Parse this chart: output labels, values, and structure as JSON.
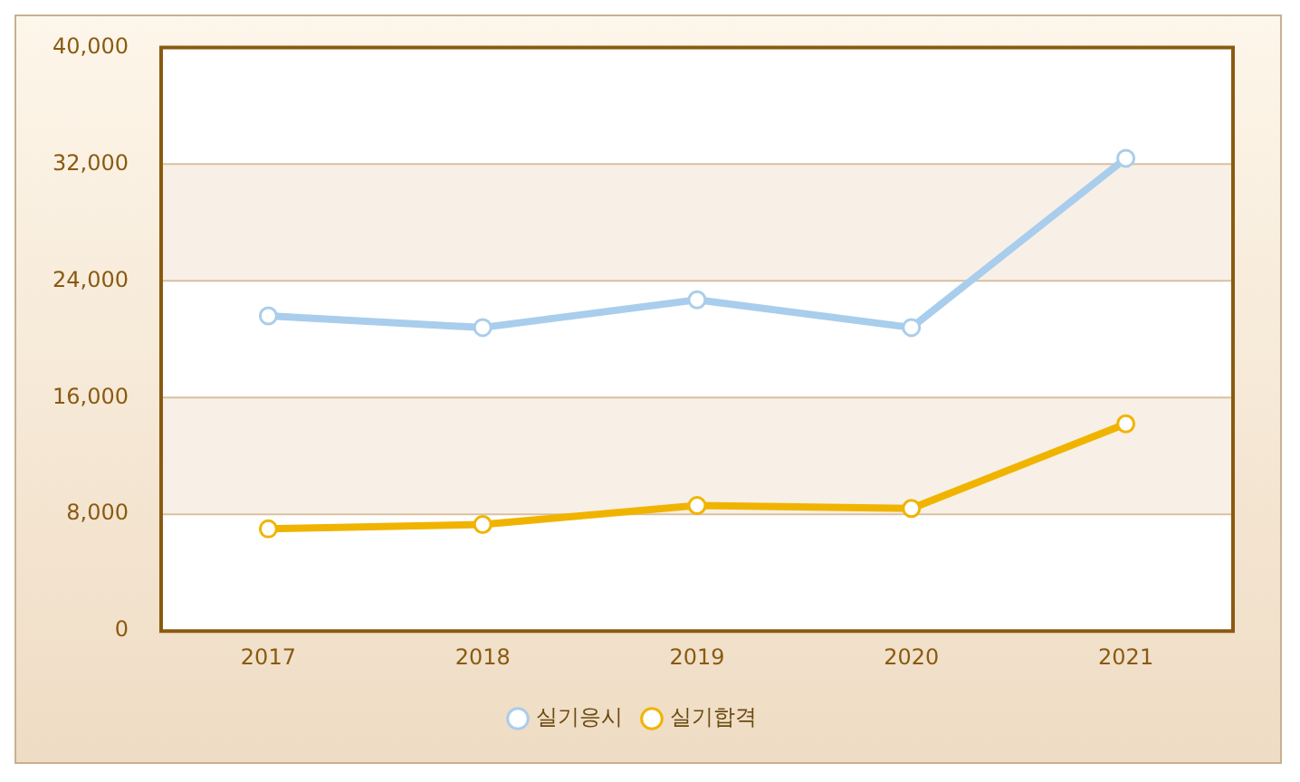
{
  "chart_data": {
    "type": "line",
    "categories": [
      "2017",
      "2018",
      "2019",
      "2020",
      "2021"
    ],
    "series": [
      {
        "name": "실기응시",
        "color": "#a9cdec",
        "values": [
          21600,
          20800,
          22700,
          20800,
          32400
        ]
      },
      {
        "name": "실기합격",
        "color": "#f0b400",
        "values": [
          7000,
          7300,
          8600,
          8400,
          14200
        ]
      }
    ],
    "ylim": [
      0,
      40000
    ],
    "yticks": [
      0,
      {
        "value": 8000,
        "label": "8,000"
      },
      {
        "value": 16000,
        "label": "16,000"
      },
      {
        "value": 24000,
        "label": "24,000"
      },
      {
        "value": 32000,
        "label": "32,000"
      },
      {
        "value": 40000,
        "label": "40,000"
      }
    ],
    "grid": "y",
    "legend": "bottom",
    "marker": "circle",
    "line_style": "solid"
  }
}
